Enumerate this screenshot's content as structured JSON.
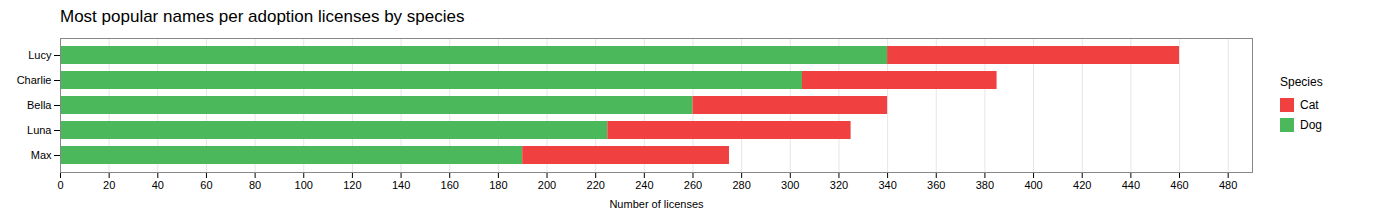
{
  "chart_data": {
    "type": "bar",
    "orientation": "horizontal",
    "stacked": true,
    "title": "Most popular names per adoption licenses by species",
    "xlabel": "Number of licenses",
    "categories": [
      "Lucy",
      "Charlie",
      "Bella",
      "Luna",
      "Max"
    ],
    "series": [
      {
        "name": "Dog",
        "color": "#4cb85c",
        "values": [
          340,
          305,
          260,
          225,
          190
        ]
      },
      {
        "name": "Cat",
        "color": "#f04040",
        "values": [
          120,
          80,
          80,
          100,
          85
        ]
      }
    ],
    "xlim": [
      0,
      490
    ],
    "xticks": [
      0,
      20,
      40,
      60,
      80,
      100,
      120,
      140,
      160,
      180,
      200,
      220,
      240,
      260,
      280,
      300,
      320,
      340,
      360,
      380,
      400,
      420,
      440,
      460,
      480
    ],
    "grid": true,
    "legend": "right",
    "legend_title": "Species"
  }
}
